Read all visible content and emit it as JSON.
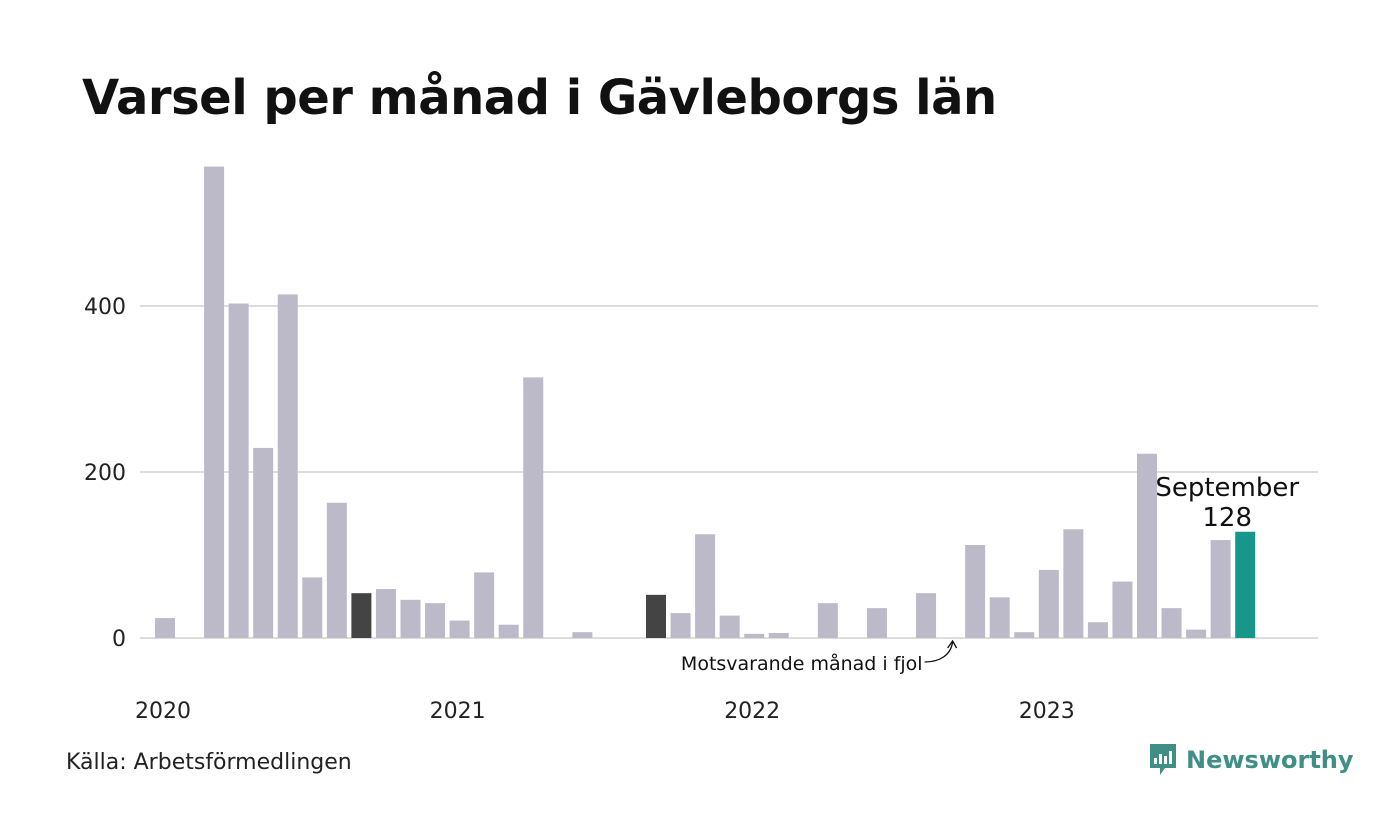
{
  "title": "Varsel per månad i Gävleborgs län",
  "source": "Källa: Arbetsförmedlingen",
  "brand": {
    "name": "Newsworthy",
    "icon": "newsworthy-logo-icon",
    "color": "#3f8f87"
  },
  "colors": {
    "bar": "#bcbac8",
    "prior_year": "#444444",
    "current": "#17978a",
    "grid": "#dddddd"
  },
  "chart_data": {
    "type": "bar",
    "xlabel": "",
    "ylabel": "",
    "ylim": [
      0,
      570
    ],
    "yticks": [
      0,
      200,
      400
    ],
    "grid": true,
    "year_labels": [
      {
        "label": "2020",
        "index": 0
      },
      {
        "label": "2021",
        "index": 12
      },
      {
        "label": "2022",
        "index": 24
      },
      {
        "label": "2023",
        "index": 36
      }
    ],
    "months": [
      "2020-01",
      "2020-02",
      "2020-03",
      "2020-04",
      "2020-05",
      "2020-06",
      "2020-07",
      "2020-08",
      "2020-09",
      "2020-10",
      "2020-11",
      "2020-12",
      "2021-01",
      "2021-02",
      "2021-03",
      "2021-04",
      "2021-05",
      "2021-06",
      "2021-07",
      "2021-08",
      "2021-09",
      "2021-10",
      "2021-11",
      "2021-12",
      "2022-01",
      "2022-02",
      "2022-03",
      "2022-04",
      "2022-05",
      "2022-06",
      "2022-07",
      "2022-08",
      "2022-09",
      "2022-10",
      "2022-11",
      "2022-12",
      "2023-01",
      "2023-02",
      "2023-03",
      "2023-04",
      "2023-05",
      "2023-06",
      "2023-07",
      "2023-08",
      "2023-09"
    ],
    "values": [
      24,
      0,
      568,
      403,
      229,
      414,
      73,
      163,
      54,
      59,
      46,
      42,
      21,
      79,
      16,
      314,
      0,
      7,
      0,
      0,
      52,
      30,
      125,
      27,
      5,
      6,
      0,
      42,
      0,
      36,
      0,
      54,
      0,
      112,
      49,
      7,
      82,
      131,
      19,
      68,
      222,
      36,
      10,
      118,
      128
    ],
    "prior_year_indices": [
      8,
      20,
      32
    ],
    "highlight": {
      "index": 44,
      "label": "September",
      "value": "128"
    },
    "annotation": {
      "text": "Motsvarande månad i fjol",
      "target_index": 32
    }
  }
}
